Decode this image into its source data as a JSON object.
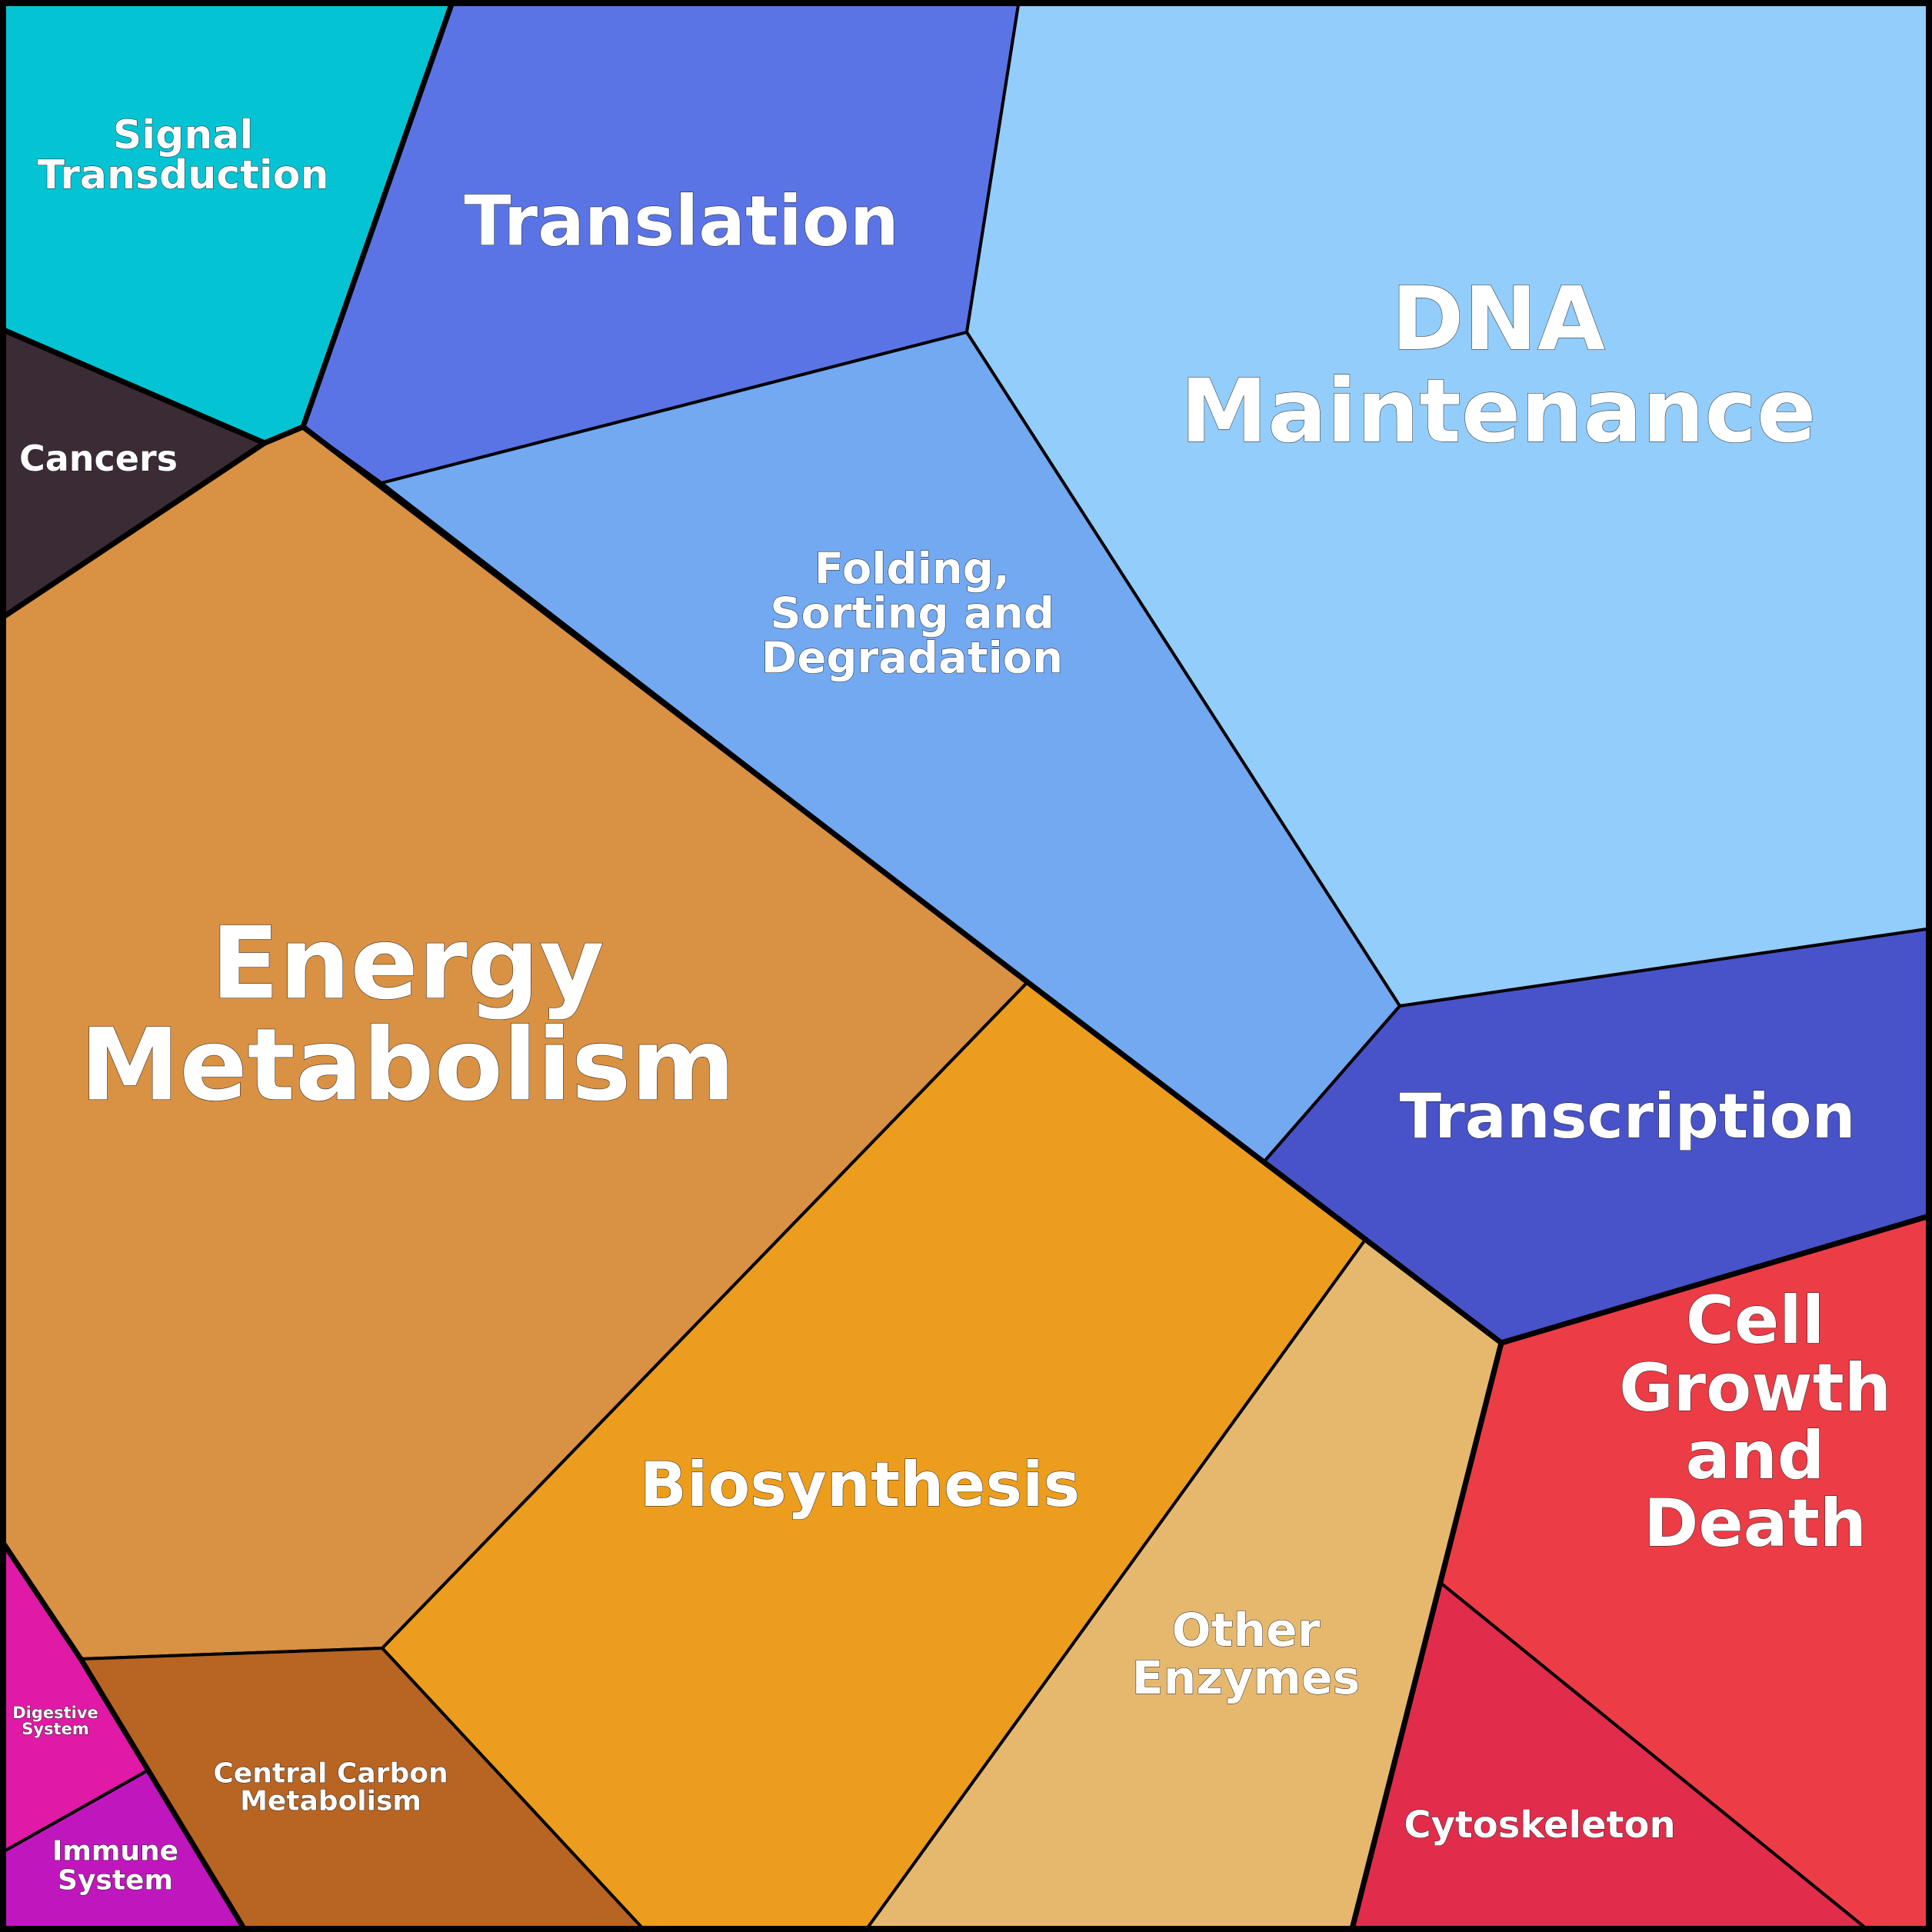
{
  "cells": [
    {
      "id": "signal-transduction",
      "lines": [
        "Signal",
        "Transduction"
      ],
      "color": "#04c4d4"
    },
    {
      "id": "translation",
      "lines": [
        "Translation"
      ],
      "color": "#5a74e6"
    },
    {
      "id": "dna-maintenance",
      "lines": [
        "DNA",
        "Maintenance"
      ],
      "color": "#93cdfb"
    },
    {
      "id": "cancers",
      "lines": [
        "Cancers"
      ],
      "color": "#3b2b35"
    },
    {
      "id": "folding-sorting-degradation",
      "lines": [
        "Folding,",
        "Sorting and",
        "Degradation"
      ],
      "color": "#72a9f1"
    },
    {
      "id": "energy-metabolism",
      "lines": [
        "Energy",
        "Metabolism"
      ],
      "color": "#d99143"
    },
    {
      "id": "transcription",
      "lines": [
        "Transcription"
      ],
      "color": "#4852c9"
    },
    {
      "id": "biosynthesis",
      "lines": [
        "Biosynthesis"
      ],
      "color": "#ec9d1e"
    },
    {
      "id": "other-enzymes",
      "lines": [
        "Other",
        "Enzymes"
      ],
      "color": "#e6b86e"
    },
    {
      "id": "cell-growth-and-death",
      "lines": [
        "Cell",
        "Growth",
        "and",
        "Death"
      ],
      "color": "#ec3c46"
    },
    {
      "id": "cytoskeleton",
      "lines": [
        "Cytoskeleton"
      ],
      "color": "#e22c4b"
    },
    {
      "id": "central-carbon-metabolism",
      "lines": [
        "Central Carbon",
        "Metabolism"
      ],
      "color": "#b86423"
    },
    {
      "id": "digestive-system",
      "lines": [
        "Digestive",
        "System"
      ],
      "color": "#e01aa6"
    },
    {
      "id": "immune-system",
      "lines": [
        "Immune",
        "System"
      ],
      "color": "#c016bd"
    }
  ]
}
